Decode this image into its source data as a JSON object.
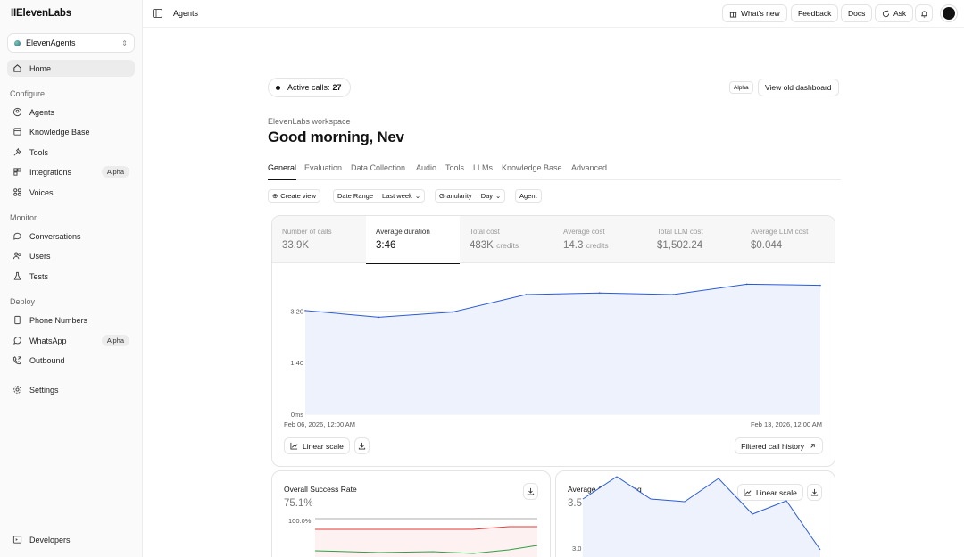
{
  "brand": "IIElevenLabs",
  "workspace": "ElevenAgents",
  "nav": {
    "home": "Home",
    "configure_label": "Configure",
    "agents": "Agents",
    "knowledge_base": "Knowledge Base",
    "tools": "Tools",
    "integrations": "Integrations",
    "integrations_badge": "Alpha",
    "voices": "Voices",
    "monitor_label": "Monitor",
    "conversations": "Conversations",
    "users": "Users",
    "tests": "Tests",
    "deploy_label": "Deploy",
    "phone_numbers": "Phone Numbers",
    "whatsapp": "WhatsApp",
    "whatsapp_badge": "Alpha",
    "outbound": "Outbound",
    "settings": "Settings",
    "developers": "Developers"
  },
  "topbar": {
    "title": "Agents",
    "whats_new": "What's new",
    "feedback": "Feedback",
    "docs": "Docs",
    "ask": "Ask"
  },
  "header": {
    "active_calls_label": "Active calls:",
    "active_calls_value": "27",
    "alpha_tag": "Alpha",
    "old_dashboard": "View old dashboard",
    "workspace_label": "ElevenLabs workspace",
    "greeting": "Good morning, Nev"
  },
  "tabs": [
    "General",
    "Evaluation",
    "Data Collection",
    "Audio",
    "Tools",
    "LLMs",
    "Knowledge Base",
    "Advanced"
  ],
  "filters": {
    "create_view": "Create view",
    "date_range_label": "Date Range",
    "date_range_value": "Last week",
    "granularity_label": "Granularity",
    "granularity_value": "Day",
    "agent": "Agent"
  },
  "metrics": [
    {
      "label": "Number of calls",
      "value": "33.9K",
      "unit": ""
    },
    {
      "label": "Average duration",
      "value": "3:46",
      "unit": ""
    },
    {
      "label": "Total cost",
      "value": "483K",
      "unit": "credits"
    },
    {
      "label": "Average cost",
      "value": "14.3",
      "unit": "credits"
    },
    {
      "label": "Total LLM cost",
      "value": "$1,502.24",
      "unit": ""
    },
    {
      "label": "Average LLM cost",
      "value": "$0.044",
      "unit": ""
    }
  ],
  "chart_data": [
    {
      "type": "area",
      "y_ticks": [
        "0ms",
        "1:40",
        "3:20"
      ],
      "y_tick_seconds": [
        0,
        100,
        200
      ],
      "ylim_seconds": [
        0,
        270
      ],
      "x_start_label": "Feb 06, 2026, 12:00 AM",
      "x_end_label": "Feb 13, 2026, 12:00 AM",
      "series": [
        {
          "values_seconds": [
            201,
            188,
            198,
            232,
            235,
            232,
            252,
            250
          ]
        }
      ],
      "color": "#2a5bd7",
      "fill": "#eef2fc"
    },
    {
      "type": "line",
      "title": "Overall Success Rate",
      "value": "75.1%",
      "y_ticks": [
        "100.0%"
      ]
    },
    {
      "type": "line",
      "title": "Average CSAT Rating",
      "value": "3.5",
      "y_ticks": [
        "3.0"
      ],
      "series": [
        {
          "values": [
            3.55,
            3.8,
            3.55,
            3.52,
            3.78,
            3.38,
            3.53,
            2.98
          ]
        }
      ]
    }
  ],
  "chart_buttons": {
    "linear_scale": "Linear scale",
    "filtered_history": "Filtered call history",
    "csat_linear_scale": "Linear scale"
  }
}
